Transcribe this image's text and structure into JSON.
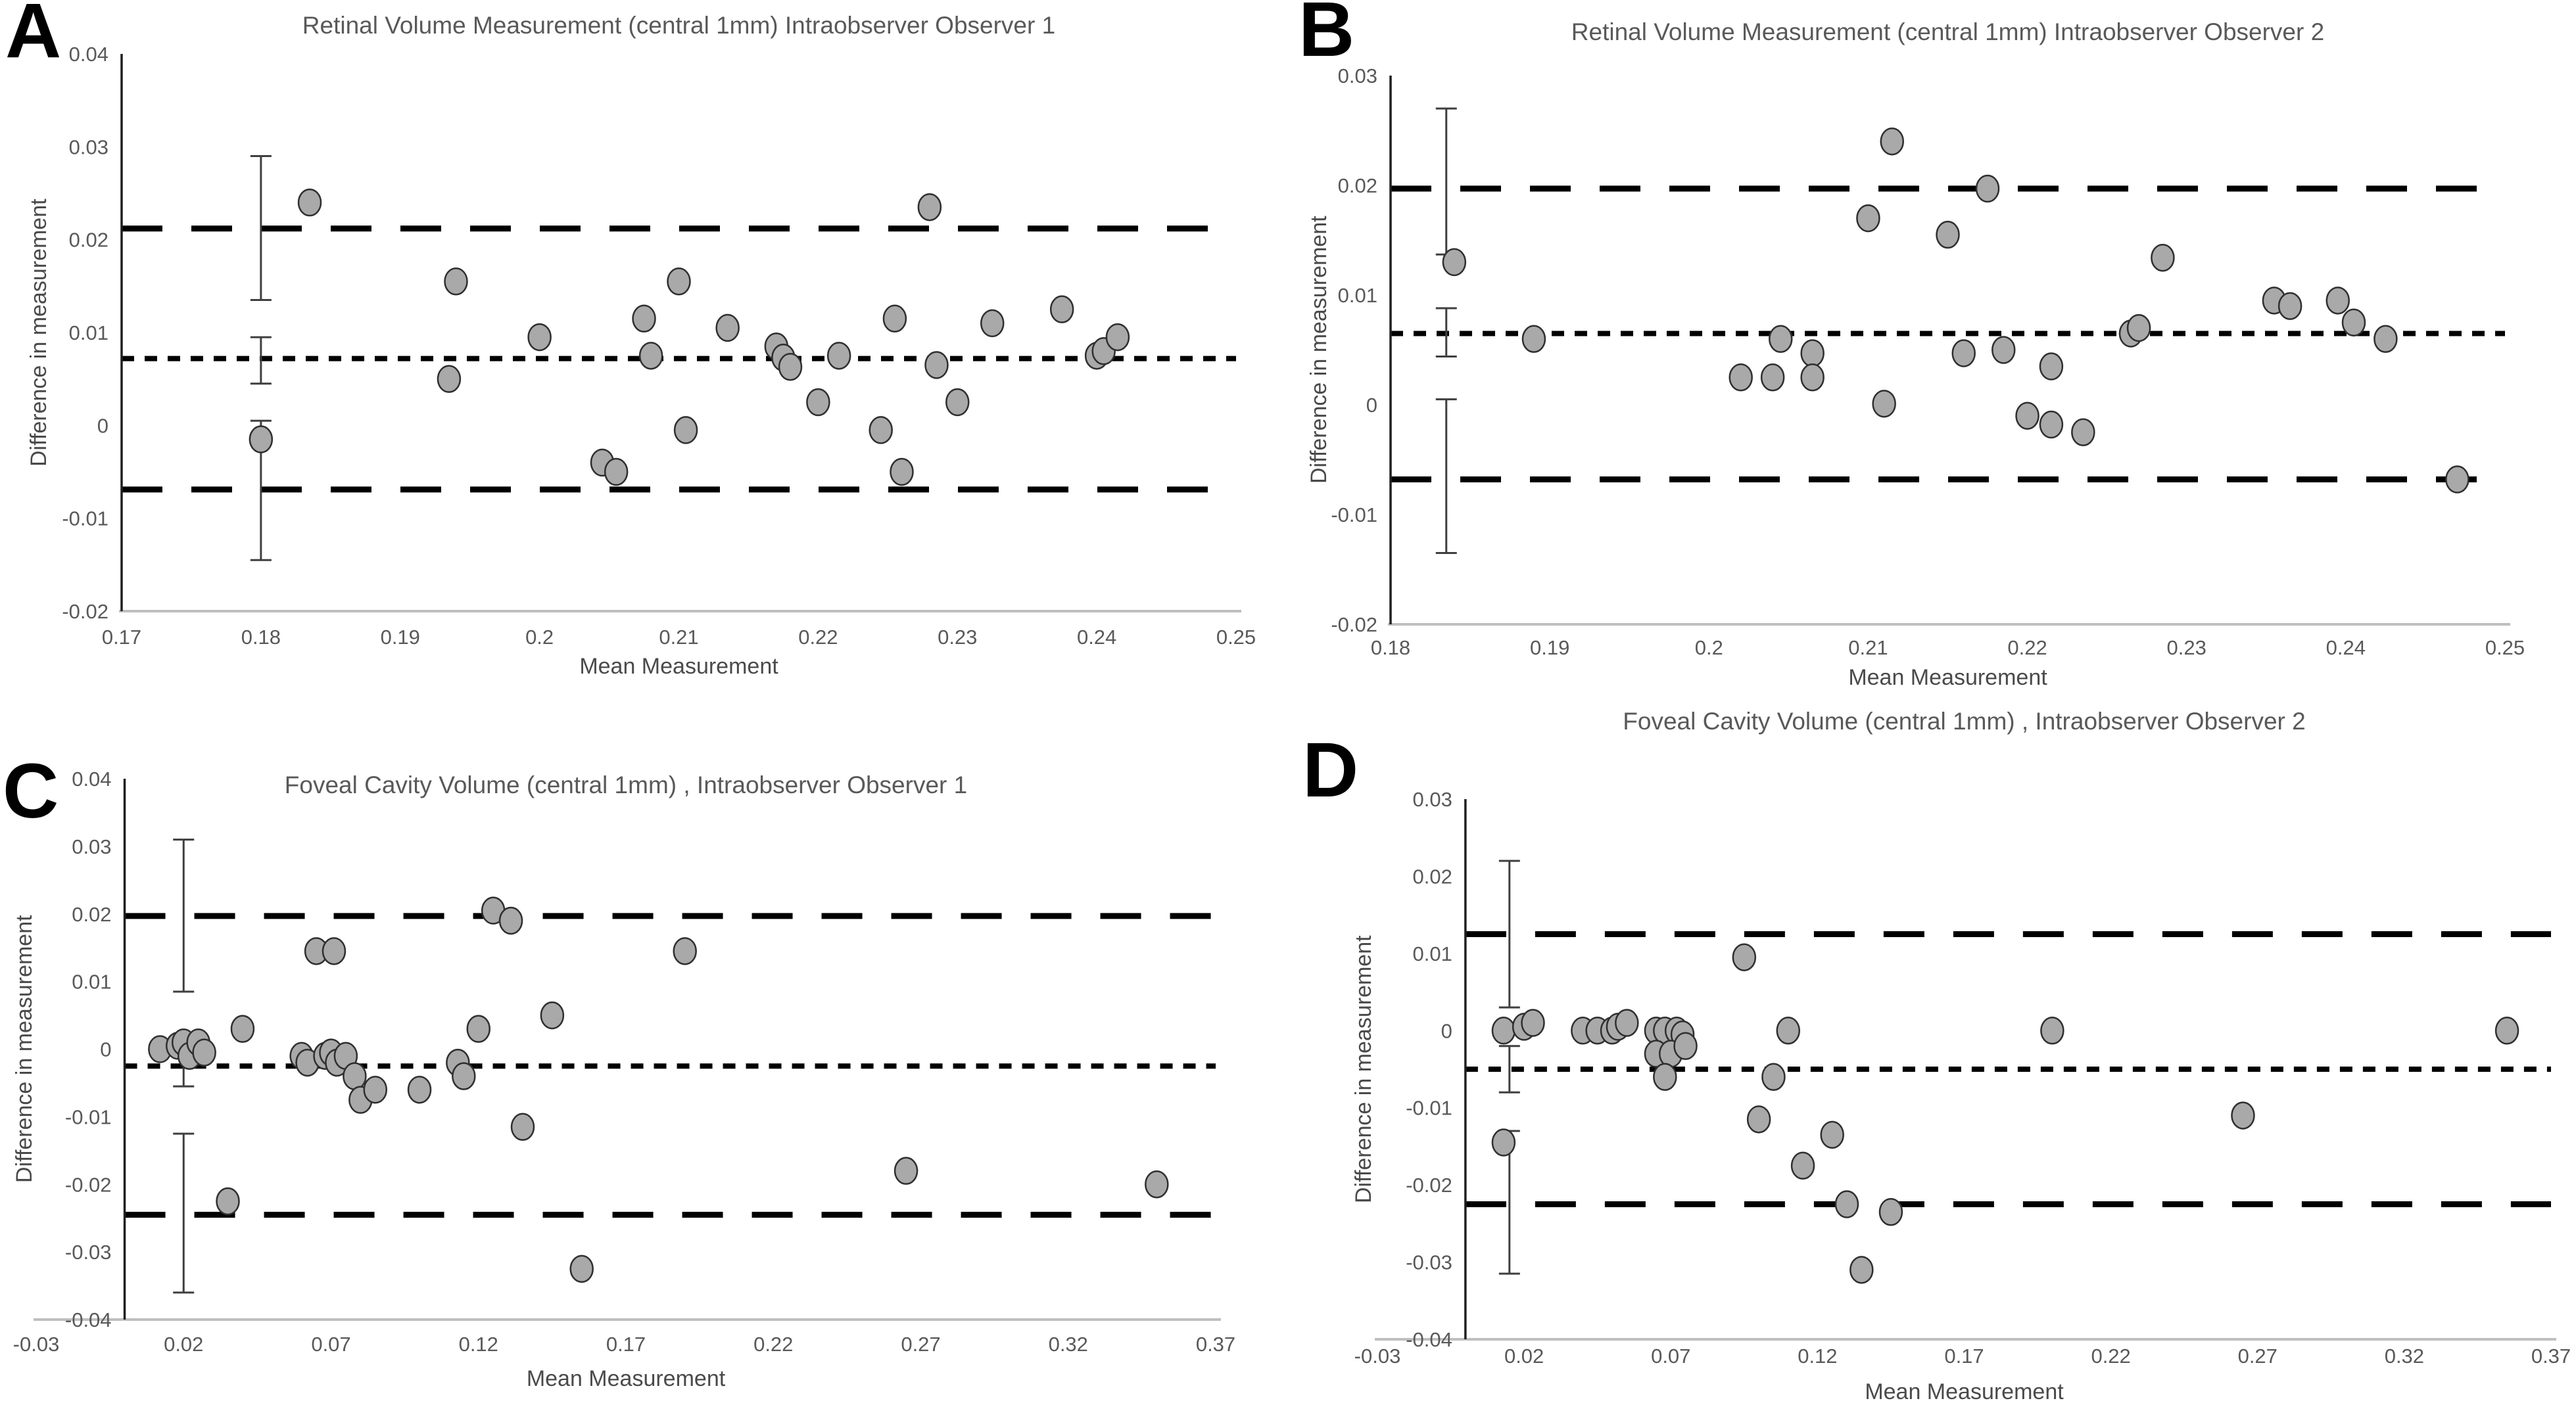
{
  "figure_title": "Bland-Altman intraobserver agreement plots",
  "colors": {
    "marker_fill": "#a9a9a9",
    "marker_stroke": "#2f2f2f",
    "line_color": "#000000",
    "axis_line": "#1f1f1f",
    "baseline": "#bfbfbf",
    "text_gray": "#595959"
  },
  "chart_data": [
    {
      "type": "scatter",
      "panel_letter": "A",
      "title": "Retinal Volume Measurement (central 1mm) Intraobserver Observer 1",
      "xlabel": "Mean Measurement",
      "ylabel": "Difference in measurement",
      "xlim": [
        0.17,
        0.25
      ],
      "ylim": [
        -0.02,
        0.04
      ],
      "grid": false,
      "legend": "none",
      "xticks": [
        {
          "v": 0.17,
          "l": "0.17"
        },
        {
          "v": 0.18,
          "l": "0.18"
        },
        {
          "v": 0.19,
          "l": "0.19"
        },
        {
          "v": 0.2,
          "l": "0.2"
        },
        {
          "v": 0.21,
          "l": "0.21"
        },
        {
          "v": 0.22,
          "l": "0.22"
        },
        {
          "v": 0.23,
          "l": "0.23"
        },
        {
          "v": 0.24,
          "l": "0.24"
        },
        {
          "v": 0.25,
          "l": "0.25"
        }
      ],
      "yticks": [
        {
          "v": 0.04,
          "l": "0.04"
        },
        {
          "v": 0.03,
          "l": "0.03"
        },
        {
          "v": 0.02,
          "l": "0.02"
        },
        {
          "v": 0.01,
          "l": "0.01"
        },
        {
          "v": 0,
          "l": "0"
        },
        {
          "v": -0.01,
          "l": "-0.01"
        },
        {
          "v": -0.02,
          "l": "-0.02"
        }
      ],
      "lines": {
        "upper_loa": 0.0212,
        "bias": 0.0072,
        "lower_loa": -0.0069
      },
      "error_bar": {
        "x": 0.18,
        "segments": [
          [
            0.0135,
            0.029
          ],
          [
            0.0045,
            0.0095
          ],
          [
            -0.0145,
            0.0005
          ]
        ]
      },
      "points": [
        [
          0.1835,
          0.024
        ],
        [
          0.18,
          -0.0015
        ],
        [
          0.194,
          0.0155
        ],
        [
          0.1935,
          0.005
        ],
        [
          0.2,
          0.0095
        ],
        [
          0.2045,
          -0.004
        ],
        [
          0.2055,
          -0.005
        ],
        [
          0.2075,
          0.0115
        ],
        [
          0.208,
          0.0075
        ],
        [
          0.21,
          0.0155
        ],
        [
          0.2105,
          -0.0005
        ],
        [
          0.2135,
          0.0105
        ],
        [
          0.217,
          0.0085
        ],
        [
          0.2175,
          0.0073
        ],
        [
          0.218,
          0.0063
        ],
        [
          0.22,
          0.0025
        ],
        [
          0.2215,
          0.0075
        ],
        [
          0.2245,
          -0.0005
        ],
        [
          0.2255,
          0.0115
        ],
        [
          0.226,
          -0.005
        ],
        [
          0.228,
          0.0235
        ],
        [
          0.2285,
          0.0065
        ],
        [
          0.23,
          0.0025
        ],
        [
          0.2325,
          0.011
        ],
        [
          0.2375,
          0.0125
        ],
        [
          0.24,
          0.0075
        ],
        [
          0.2405,
          0.008
        ],
        [
          0.2415,
          0.0095
        ]
      ]
    },
    {
      "type": "scatter",
      "panel_letter": "B",
      "title": "Retinal Volume Measurement (central 1mm) Intraobserver Observer 2",
      "xlabel": "Mean Measurement",
      "ylabel": "Difference in measurement",
      "xlim": [
        0.18,
        0.25
      ],
      "ylim": [
        -0.02,
        0.03
      ],
      "grid": false,
      "legend": "none",
      "xticks": [
        {
          "v": 0.18,
          "l": "0.18"
        },
        {
          "v": 0.19,
          "l": "0.19"
        },
        {
          "v": 0.2,
          "l": "0.2"
        },
        {
          "v": 0.21,
          "l": "0.21"
        },
        {
          "v": 0.22,
          "l": "0.22"
        },
        {
          "v": 0.23,
          "l": "0.23"
        },
        {
          "v": 0.24,
          "l": "0.24"
        },
        {
          "v": 0.25,
          "l": "0.25"
        }
      ],
      "yticks": [
        {
          "v": 0.03,
          "l": "0.03"
        },
        {
          "v": 0.02,
          "l": "0.02"
        },
        {
          "v": 0.01,
          "l": "0.01"
        },
        {
          "v": 0,
          "l": "0"
        },
        {
          "v": -0.01,
          "l": "-0.01"
        },
        {
          "v": -0.02,
          "l": "-0.02"
        }
      ],
      "lines": {
        "upper_loa": 0.0197,
        "bias": 0.0065,
        "lower_loa": -0.0068
      },
      "error_bar": {
        "x": 0.1835,
        "segments": [
          [
            0.0137,
            0.027
          ],
          [
            0.0044,
            0.0088
          ],
          [
            -0.0135,
            0.0005
          ]
        ]
      },
      "points": [
        [
          0.184,
          0.013
        ],
        [
          0.189,
          0.006
        ],
        [
          0.202,
          0.0025
        ],
        [
          0.204,
          0.0025
        ],
        [
          0.2045,
          0.006
        ],
        [
          0.2065,
          0.0047
        ],
        [
          0.2065,
          0.0025
        ],
        [
          0.21,
          0.017
        ],
        [
          0.2115,
          0.024
        ],
        [
          0.211,
          0.0001
        ],
        [
          0.215,
          0.0155
        ],
        [
          0.216,
          0.0047
        ],
        [
          0.2175,
          0.0197
        ],
        [
          0.2185,
          0.005
        ],
        [
          0.22,
          -0.001
        ],
        [
          0.2215,
          0.0035
        ],
        [
          0.2215,
          -0.0018
        ],
        [
          0.2235,
          -0.0025
        ],
        [
          0.2265,
          0.0065
        ],
        [
          0.227,
          0.007
        ],
        [
          0.2285,
          0.0134
        ],
        [
          0.2355,
          0.0095
        ],
        [
          0.2365,
          0.009
        ],
        [
          0.2395,
          0.0095
        ],
        [
          0.2405,
          0.0075
        ],
        [
          0.2425,
          0.006
        ],
        [
          0.247,
          -0.0068
        ]
      ]
    },
    {
      "type": "scatter",
      "panel_letter": "C",
      "title": "Foveal Cavity Volume (central 1mm) , Intraobserver Observer 1",
      "xlabel": "Mean Measurement",
      "ylabel": "Difference in measurement",
      "xlim": [
        -0.03,
        0.37
      ],
      "ylim": [
        -0.04,
        0.04
      ],
      "grid": false,
      "legend": "none",
      "xticks": [
        {
          "v": -0.03,
          "l": "-0.03"
        },
        {
          "v": 0.02,
          "l": "0.02"
        },
        {
          "v": 0.07,
          "l": "0.07"
        },
        {
          "v": 0.12,
          "l": "0.12"
        },
        {
          "v": 0.17,
          "l": "0.17"
        },
        {
          "v": 0.22,
          "l": "0.22"
        },
        {
          "v": 0.27,
          "l": "0.27"
        },
        {
          "v": 0.32,
          "l": "0.32"
        },
        {
          "v": 0.37,
          "l": "0.37"
        }
      ],
      "yticks": [
        {
          "v": 0.04,
          "l": "0.04"
        },
        {
          "v": 0.03,
          "l": "0.03"
        },
        {
          "v": 0.02,
          "l": "0.02"
        },
        {
          "v": 0.01,
          "l": "0.01"
        },
        {
          "v": 0,
          "l": "0"
        },
        {
          "v": -0.01,
          "l": "-0.01"
        },
        {
          "v": -0.02,
          "l": "-0.02"
        },
        {
          "v": -0.03,
          "l": "-0.03"
        },
        {
          "v": -0.04,
          "l": "-0.04"
        }
      ],
      "lines": {
        "upper_loa": 0.0197,
        "bias": -0.0025,
        "lower_loa": -0.0245
      },
      "error_bar": {
        "x": 0.02,
        "segments": [
          [
            0.0085,
            0.031
          ],
          [
            -0.0055,
            -0.0005
          ],
          [
            -0.036,
            -0.0125
          ]
        ]
      },
      "points": [
        [
          0.012,
          0
        ],
        [
          0.018,
          0.0005
        ],
        [
          0.02,
          0.001
        ],
        [
          0.022,
          -0.001
        ],
        [
          0.025,
          0.001
        ],
        [
          0.027,
          -0.0005
        ],
        [
          0.04,
          0.003
        ],
        [
          0.035,
          -0.0225
        ],
        [
          0.06,
          -0.001
        ],
        [
          0.062,
          -0.002
        ],
        [
          0.065,
          0.0145
        ],
        [
          0.071,
          0.0145
        ],
        [
          0.068,
          -0.001
        ],
        [
          0.07,
          -0.0005
        ],
        [
          0.072,
          -0.002
        ],
        [
          0.075,
          -0.001
        ],
        [
          0.078,
          -0.004
        ],
        [
          0.08,
          -0.0075
        ],
        [
          0.085,
          -0.006
        ],
        [
          0.1,
          -0.006
        ],
        [
          0.113,
          -0.002
        ],
        [
          0.115,
          -0.004
        ],
        [
          0.12,
          0.003
        ],
        [
          0.125,
          0.0205
        ],
        [
          0.131,
          0.019
        ],
        [
          0.135,
          -0.0115
        ],
        [
          0.145,
          0.005
        ],
        [
          0.155,
          -0.0325
        ],
        [
          0.19,
          0.0145
        ],
        [
          0.265,
          -0.018
        ],
        [
          0.35,
          -0.02
        ]
      ]
    },
    {
      "type": "scatter",
      "panel_letter": "D",
      "title": "Foveal Cavity Volume (central 1mm) , Intraobserver Observer 2",
      "xlabel": "Mean Measurement",
      "ylabel": "Difference in measurement",
      "xlim": [
        -0.03,
        0.37
      ],
      "ylim": [
        -0.04,
        0.03
      ],
      "grid": false,
      "legend": "none",
      "xticks": [
        {
          "v": -0.03,
          "l": "-0.03"
        },
        {
          "v": 0.02,
          "l": "0.02"
        },
        {
          "v": 0.07,
          "l": "0.07"
        },
        {
          "v": 0.12,
          "l": "0.12"
        },
        {
          "v": 0.17,
          "l": "0.17"
        },
        {
          "v": 0.22,
          "l": "0.22"
        },
        {
          "v": 0.27,
          "l": "0.27"
        },
        {
          "v": 0.32,
          "l": "0.32"
        },
        {
          "v": 0.37,
          "l": "0.37"
        }
      ],
      "yticks": [
        {
          "v": 0.03,
          "l": "0.03"
        },
        {
          "v": 0.02,
          "l": "0.02"
        },
        {
          "v": 0.01,
          "l": "0.01"
        },
        {
          "v": 0,
          "l": "0"
        },
        {
          "v": -0.01,
          "l": "-0.01"
        },
        {
          "v": -0.02,
          "l": "-0.02"
        },
        {
          "v": -0.03,
          "l": "-0.03"
        },
        {
          "v": -0.04,
          "l": "-0.04"
        }
      ],
      "lines": {
        "upper_loa": 0.0125,
        "bias": -0.005,
        "lower_loa": -0.0225
      },
      "error_bar": {
        "x": 0.015,
        "segments": [
          [
            0.003,
            0.022
          ],
          [
            -0.008,
            -0.002
          ],
          [
            -0.0315,
            -0.013
          ]
        ]
      },
      "points": [
        [
          0.013,
          0
        ],
        [
          0.013,
          -0.0145
        ],
        [
          0.02,
          0.0005
        ],
        [
          0.023,
          0.001
        ],
        [
          0.04,
          0
        ],
        [
          0.045,
          0
        ],
        [
          0.05,
          0
        ],
        [
          0.052,
          0.0005
        ],
        [
          0.055,
          0.001
        ],
        [
          0.065,
          0
        ],
        [
          0.068,
          0
        ],
        [
          0.072,
          0
        ],
        [
          0.074,
          -0.0005
        ],
        [
          0.065,
          -0.003
        ],
        [
          0.07,
          -0.003
        ],
        [
          0.075,
          -0.002
        ],
        [
          0.068,
          -0.006
        ],
        [
          0.095,
          0.0095
        ],
        [
          0.11,
          0
        ],
        [
          0.105,
          -0.006
        ],
        [
          0.1,
          -0.0115
        ],
        [
          0.115,
          -0.0175
        ],
        [
          0.125,
          -0.0135
        ],
        [
          0.13,
          -0.0225
        ],
        [
          0.145,
          -0.0235
        ],
        [
          0.135,
          -0.031
        ],
        [
          0.2,
          0
        ],
        [
          0.265,
          -0.011
        ],
        [
          0.355,
          0
        ]
      ]
    }
  ]
}
